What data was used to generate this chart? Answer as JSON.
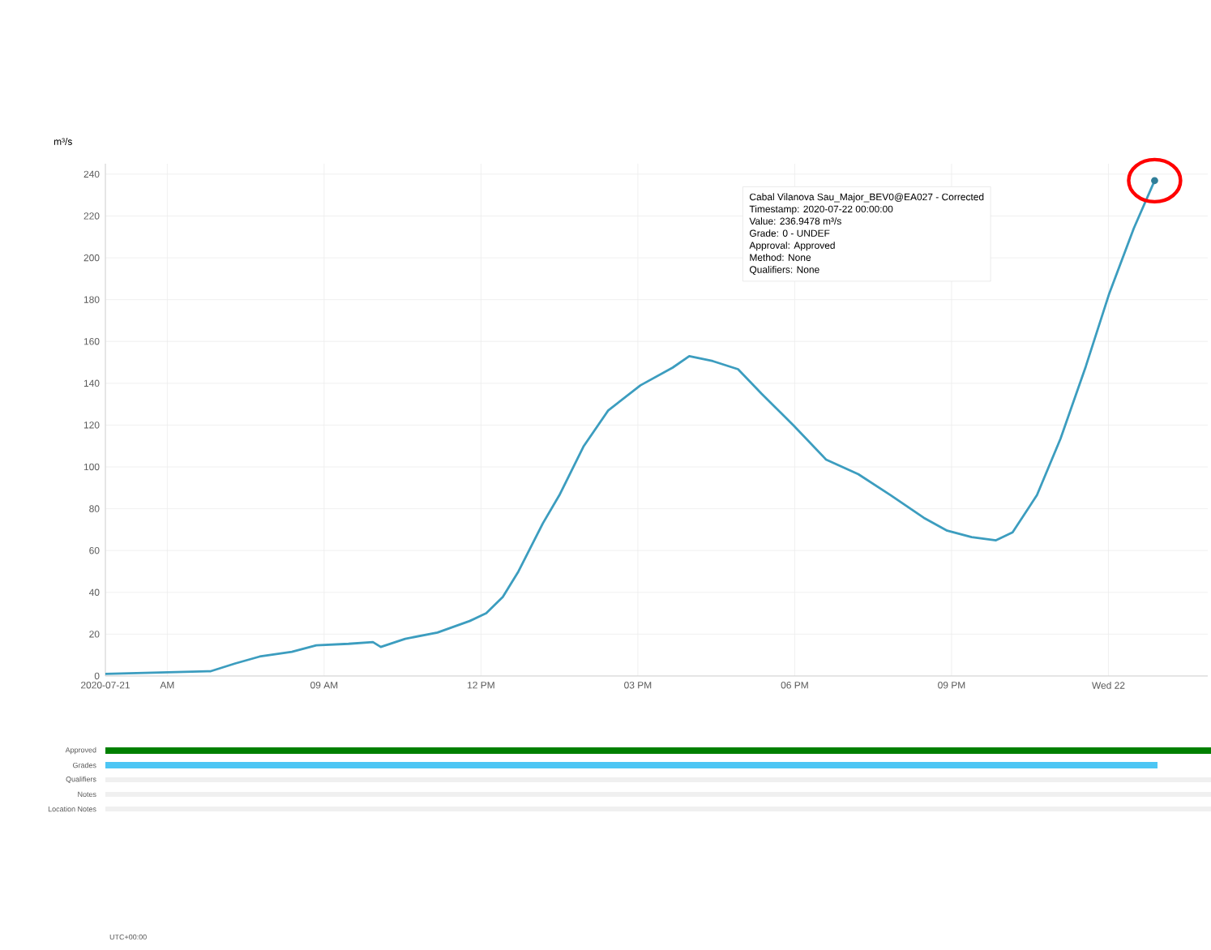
{
  "chart_data": {
    "type": "line",
    "ylabel": "m³/s",
    "x": [
      "2020-07-21T04:49",
      "2020-07-21T06:50",
      "2020-07-21T07:18",
      "2020-07-21T07:46",
      "2020-07-21T08:23",
      "2020-07-21T08:51",
      "2020-07-21T09:28",
      "2020-07-21T09:56",
      "2020-07-21T10:05",
      "2020-07-21T10:33",
      "2020-07-21T11:10",
      "2020-07-21T11:47",
      "2020-07-21T12:06",
      "2020-07-21T12:25",
      "2020-07-21T12:43",
      "2020-07-21T13:11",
      "2020-07-21T13:30",
      "2020-07-21T13:58",
      "2020-07-21T14:26",
      "2020-07-21T15:03",
      "2020-07-21T15:40",
      "2020-07-21T15:59",
      "2020-07-21T16:26",
      "2020-07-21T16:55",
      "2020-07-21T17:22",
      "2020-07-21T17:59",
      "2020-07-21T18:36",
      "2020-07-21T19:13",
      "2020-07-21T19:50",
      "2020-07-21T20:28",
      "2020-07-21T20:55",
      "2020-07-21T21:23",
      "2020-07-21T21:51",
      "2020-07-21T22:10",
      "2020-07-21T22:38",
      "2020-07-21T23:05",
      "2020-07-21T23:34",
      "2020-07-22T00:01",
      "2020-07-22T00:29",
      "2020-07-22T00:53"
    ],
    "series": [
      {
        "color": "#3c9dbf",
        "values": [
          1,
          2.3,
          6,
          9.3,
          11.6,
          14.7,
          15.4,
          16.2,
          13.9,
          17.8,
          20.8,
          26.3,
          30,
          37.8,
          50,
          73,
          86.5,
          110,
          127,
          139,
          147.5,
          153,
          150.6,
          146.7,
          135,
          119.7,
          103.5,
          96.5,
          86.5,
          75.7,
          69.5,
          66.4,
          64.9,
          68.7,
          86.5,
          113.5,
          148,
          183,
          214,
          236.9
        ]
      }
    ],
    "xlim": [
      "2020-07-21T04:49",
      "2020-07-22T01:54"
    ],
    "xticks": [
      {
        "value": "2020-07-21T04:49",
        "label": "2020-07-21"
      },
      {
        "value": "2020-07-21T06:00",
        "label": "AM"
      },
      {
        "value": "2020-07-21T09:00",
        "label": "09 AM"
      },
      {
        "value": "2020-07-21T12:00",
        "label": "12 PM"
      },
      {
        "value": "2020-07-21T15:00",
        "label": "03 PM"
      },
      {
        "value": "2020-07-21T18:00",
        "label": "06 PM"
      },
      {
        "value": "2020-07-21T21:00",
        "label": "09 PM"
      },
      {
        "value": "2020-07-22T00:00",
        "label": "Wed 22"
      }
    ],
    "ylim": [
      0,
      245
    ],
    "yticks": [
      0,
      20,
      40,
      60,
      80,
      100,
      120,
      140,
      160,
      180,
      200,
      220,
      240
    ],
    "grid": true,
    "marker": "none",
    "line_style": "solid",
    "annotations": [
      "Cabal Vilanova Sau_Major_BEV0@EA027 - Corrected",
      "Timestamp: 2020-07-22 00:00:00",
      "Value: 236.9478 m³/s",
      "Grade: 0 - UNDEF",
      "Approval: Approved",
      "Method: None",
      "Qualifiers: None",
      "Approved",
      "Grades",
      "Qualifiers",
      "Notes",
      "Location Notes",
      "UTC+00:00"
    ]
  }
}
